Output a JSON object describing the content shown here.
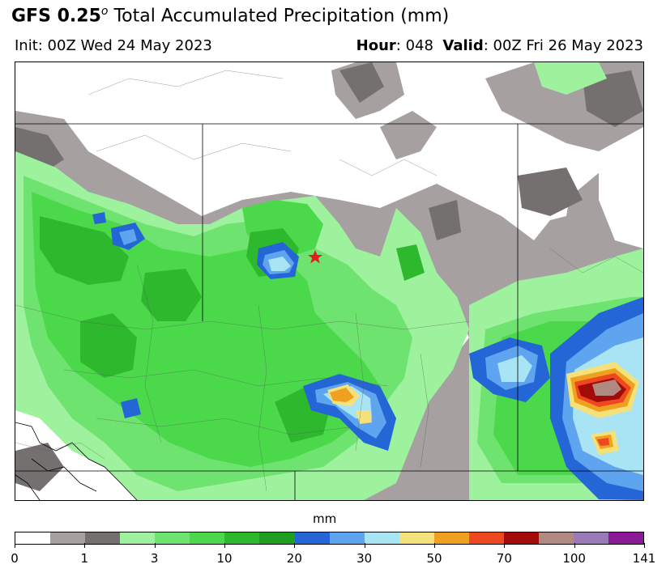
{
  "header": {
    "title_model": "GFS 0.25",
    "title_sup": "o",
    "title_rest": " Total Accumulated Precipitation (mm)",
    "init": "Init: 00Z Wed 24 May 2023",
    "hour_label": "Hour",
    "hour_value": ": 048",
    "valid_label": "Valid",
    "valid_value": ": 00Z Fri 26 May 2023"
  },
  "colorbar": {
    "unit": "mm",
    "colors": [
      "#ffffff",
      "#a6a0a0",
      "#747070",
      "#9ef29e",
      "#6fe36f",
      "#4bd94b",
      "#2eb82e",
      "#1f9f1f",
      "#2466d6",
      "#5fa4ef",
      "#a8e4f4",
      "#f4e17a",
      "#f0a020",
      "#ee4820",
      "#a30b0b",
      "#b08a80",
      "#9b7ab8",
      "#8a1a96"
    ],
    "ticks": [
      "0",
      "1",
      "3",
      "10",
      "20",
      "30",
      "50",
      "70",
      "100",
      "141"
    ]
  },
  "map": {
    "marker": "red-star",
    "colors": {
      "gray_light": "#a6a0a0",
      "gray_dark": "#747070",
      "green_pale": "#9ef29e",
      "green_light": "#6fe36f",
      "green": "#4bd94b",
      "green_mid": "#2eb82e",
      "green_dark": "#1f9f1f",
      "blue": "#2466d6",
      "blue_light": "#5fa4ef",
      "cyan": "#a8e4f4",
      "yellow": "#f4e17a",
      "orange": "#f0a020",
      "red": "#ee4820",
      "dark_red": "#a30b0b",
      "mauve": "#b08a80",
      "purple_light": "#9b7ab8"
    }
  }
}
